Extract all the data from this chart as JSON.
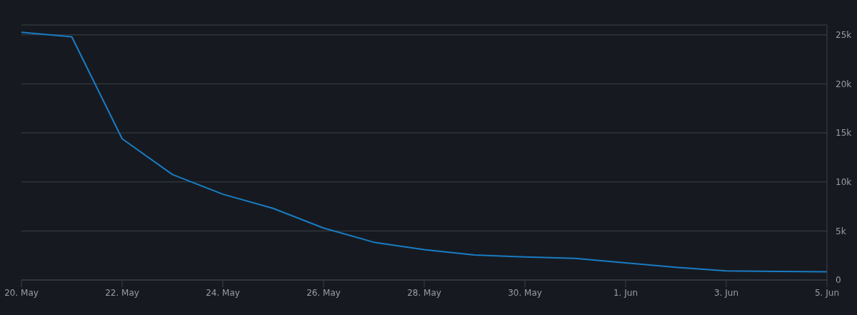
{
  "chart_data": {
    "type": "line",
    "x": [
      "--05-20",
      "--05-21",
      "--05-22",
      "--05-23",
      "--05-24",
      "--05-25",
      "--05-26",
      "--05-27",
      "--05-28",
      "--05-29",
      "--05-30",
      "--05-31",
      "--06-01",
      "--06-02",
      "--06-03",
      "--06-04",
      "--06-05"
    ],
    "series": [
      {
        "color": "#1a7cc4",
        "values": [
          25250,
          24800,
          14400,
          10750,
          8750,
          7300,
          5300,
          3850,
          3100,
          2550,
          2350,
          2200,
          1750,
          1300,
          930,
          870,
          840
        ]
      }
    ],
    "xlim": [
      "--05-20",
      "--06-05"
    ],
    "xticks": [
      {
        "value": "--05-20",
        "label": "20. May"
      },
      {
        "value": "--05-22",
        "label": "22. May"
      },
      {
        "value": "--05-24",
        "label": "24. May"
      },
      {
        "value": "--05-26",
        "label": "26. May"
      },
      {
        "value": "--05-28",
        "label": "28. May"
      },
      {
        "value": "--05-30",
        "label": "30. May"
      },
      {
        "value": "--06-01",
        "label": "1. Jun"
      },
      {
        "value": "--06-03",
        "label": "3. Jun"
      },
      {
        "value": "--06-05",
        "label": "5. Jun"
      }
    ],
    "ylim": [
      0,
      26000
    ],
    "yticks": [
      0,
      {
        "value": 5000,
        "label": "5k"
      },
      {
        "value": 10000,
        "label": "10k"
      },
      {
        "value": 15000,
        "label": "15k"
      },
      {
        "value": 20000,
        "label": "20k"
      },
      {
        "value": 25000,
        "label": "25k"
      }
    ],
    "grid": "y",
    "marker": "none",
    "line_style": "solid"
  }
}
